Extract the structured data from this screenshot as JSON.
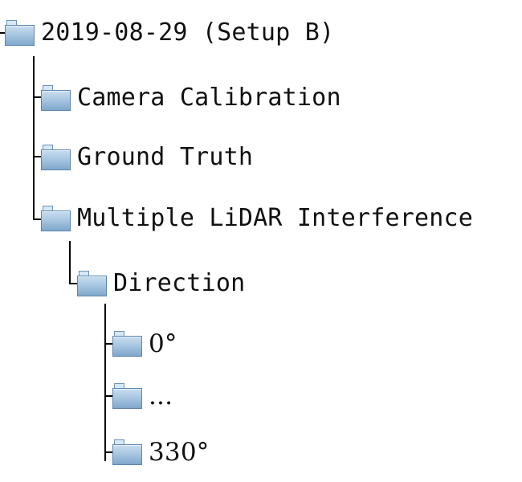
{
  "tree": {
    "root": {
      "label": "2019-08-29 (Setup B)",
      "icon": "folder-icon",
      "children": [
        {
          "label": "Camera Calibration",
          "icon": "folder-icon"
        },
        {
          "label": "Ground Truth",
          "icon": "folder-icon"
        },
        {
          "label": "Multiple LiDAR Interference",
          "icon": "folder-icon",
          "children": [
            {
              "label": "Direction",
              "icon": "folder-icon",
              "children": [
                {
                  "label": "0°",
                  "icon": "folder-icon"
                },
                {
                  "label": "...",
                  "icon": "folder-icon"
                },
                {
                  "label": "330°",
                  "icon": "folder-icon"
                }
              ]
            }
          ]
        }
      ]
    }
  },
  "colors": {
    "line": "#000000",
    "folder_light": "#c9ddef",
    "folder_dark": "#7fa7cc",
    "folder_border": "#5e86ad",
    "text": "#111111"
  }
}
